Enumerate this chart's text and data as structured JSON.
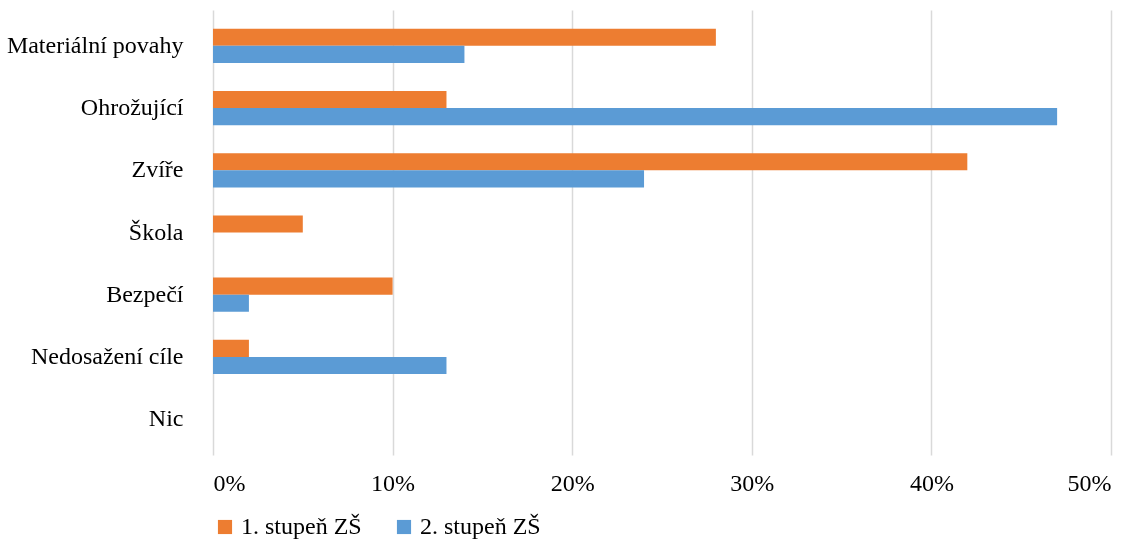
{
  "chart_data": {
    "type": "bar",
    "orientation": "horizontal",
    "categories": [
      "Materiální povahy",
      "Ohrožující",
      "Zvíře",
      "Škola",
      "Bezpečí",
      "Nedosažení cíle",
      "Nic"
    ],
    "series": [
      {
        "name": "1. stupeň ZŠ",
        "color": "#ed7d31",
        "values": [
          28,
          13,
          42,
          5,
          10,
          2,
          0
        ]
      },
      {
        "name": "2. stupeň ZŠ",
        "color": "#5b9bd5",
        "values": [
          14,
          47,
          24,
          0,
          2,
          13,
          0
        ]
      }
    ],
    "xlim": [
      0,
      50
    ],
    "xticks": [
      {
        "value": 0,
        "label": "0%"
      },
      {
        "value": 10,
        "label": "10%"
      },
      {
        "value": 20,
        "label": "20%"
      },
      {
        "value": 30,
        "label": "30%"
      },
      {
        "value": 40,
        "label": "40%"
      },
      {
        "value": 50,
        "label": "50%"
      }
    ],
    "grid": "x",
    "legend": "bottom"
  }
}
